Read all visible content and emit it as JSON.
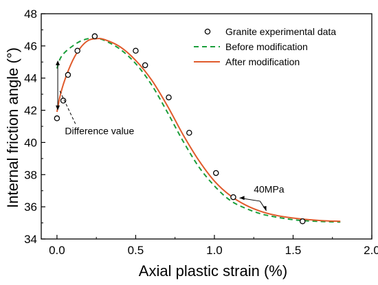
{
  "chart_data": {
    "type": "line",
    "title": "",
    "xlabel": "Axial plastic strain (%)",
    "ylabel": "Internal friction angle (°)",
    "xlim": [
      -0.1,
      2.0
    ],
    "ylim": [
      34,
      48
    ],
    "xticks": [
      0.0,
      0.5,
      1.0,
      1.5,
      2.0
    ],
    "xtick_labels": [
      "0.0",
      "0.5",
      "1.0",
      "1.5",
      "2.0"
    ],
    "yticks": [
      34,
      36,
      38,
      40,
      42,
      44,
      46,
      48
    ],
    "ytick_labels": [
      "34",
      "36",
      "38",
      "40",
      "42",
      "44",
      "46",
      "48"
    ],
    "grid": false,
    "legend_position": "top-right",
    "series": [
      {
        "name": "Granite experimental data",
        "type": "scatter",
        "marker": "open-circle",
        "color": "#000000",
        "x": [
          0.0,
          0.04,
          0.07,
          0.13,
          0.24,
          0.5,
          0.56,
          0.71,
          0.84,
          1.01,
          1.12,
          1.56
        ],
        "y": [
          41.5,
          42.6,
          44.2,
          45.7,
          46.6,
          45.7,
          44.8,
          42.8,
          40.6,
          38.1,
          36.6,
          35.1
        ]
      },
      {
        "name": "Before modification",
        "type": "line",
        "style": "dashed",
        "color": "#1a9e3a",
        "x": [
          0.0,
          0.02,
          0.05,
          0.1,
          0.15,
          0.2,
          0.25,
          0.3,
          0.4,
          0.5,
          0.6,
          0.7,
          0.8,
          0.9,
          1.0,
          1.1,
          1.2,
          1.3,
          1.4,
          1.5,
          1.6,
          1.7,
          1.8
        ],
        "y": [
          44.6,
          45.2,
          45.6,
          46.0,
          46.3,
          46.45,
          46.45,
          46.35,
          45.8,
          44.9,
          43.6,
          41.9,
          40.1,
          38.5,
          37.3,
          36.4,
          35.9,
          35.55,
          35.35,
          35.2,
          35.12,
          35.08,
          35.05
        ]
      },
      {
        "name": "After modification",
        "type": "line",
        "style": "solid",
        "color": "#e05a2b",
        "x": [
          0.0,
          0.02,
          0.05,
          0.1,
          0.15,
          0.2,
          0.25,
          0.3,
          0.4,
          0.5,
          0.6,
          0.7,
          0.8,
          0.9,
          1.0,
          1.1,
          1.2,
          1.3,
          1.4,
          1.5,
          1.6,
          1.7,
          1.8
        ],
        "y": [
          41.9,
          42.9,
          43.9,
          45.1,
          45.9,
          46.35,
          46.45,
          46.4,
          45.95,
          45.1,
          43.9,
          42.3,
          40.5,
          38.9,
          37.6,
          36.7,
          36.1,
          35.7,
          35.45,
          35.3,
          35.2,
          35.13,
          35.1
        ]
      }
    ],
    "annotations": [
      {
        "text": "Difference value"
      },
      {
        "text": "40MPa"
      }
    ]
  }
}
